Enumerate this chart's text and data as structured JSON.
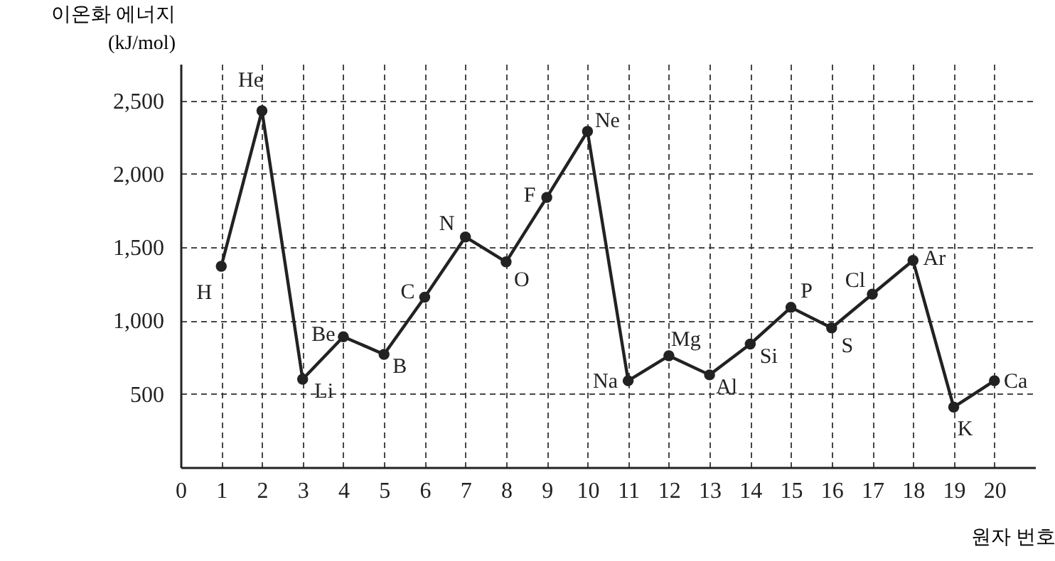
{
  "chart_data": {
    "type": "line",
    "xlabel": "원자 번호",
    "ylabel": "이온화 에너지\n(kJ/mol)",
    "x": [
      1,
      2,
      3,
      4,
      5,
      6,
      7,
      8,
      9,
      10,
      11,
      12,
      13,
      14,
      15,
      16,
      17,
      18,
      19,
      20
    ],
    "series": [
      {
        "color": "#222222",
        "values": [
          1370,
          2430,
          600,
          890,
          770,
          1160,
          1570,
          1400,
          1840,
          2290,
          590,
          760,
          630,
          840,
          1090,
          950,
          1180,
          1410,
          410,
          590
        ]
      }
    ],
    "xlim": [
      0,
      21
    ],
    "xticks": [
      0,
      1,
      2,
      3,
      4,
      5,
      6,
      7,
      8,
      9,
      10,
      11,
      12,
      13,
      14,
      15,
      16,
      17,
      18,
      19,
      20
    ],
    "ylim": [
      0,
      2750
    ],
    "yticks": [
      500,
      {
        "value": 1000,
        "label": "1,000"
      },
      {
        "value": 1500,
        "label": "1,500"
      },
      {
        "value": 2000,
        "label": "2,000"
      },
      {
        "value": 2500,
        "label": "2,500"
      }
    ],
    "grid": true,
    "marker": "circle",
    "line_style": "solid",
    "annotations": [
      {
        "text": "H",
        "x": 1,
        "y": 1370
      },
      {
        "text": "He",
        "x": 2,
        "y": 2430
      },
      {
        "text": "Li",
        "x": 3,
        "y": 600
      },
      {
        "text": "Be",
        "x": 4,
        "y": 890
      },
      {
        "text": "B",
        "x": 5,
        "y": 770
      },
      {
        "text": "C",
        "x": 6,
        "y": 1160
      },
      {
        "text": "N",
        "x": 7,
        "y": 1570
      },
      {
        "text": "O",
        "x": 8,
        "y": 1400
      },
      {
        "text": "F",
        "x": 9,
        "y": 1840
      },
      {
        "text": "Ne",
        "x": 10,
        "y": 2290
      },
      {
        "text": "Na",
        "x": 11,
        "y": 590
      },
      {
        "text": "Mg",
        "x": 12,
        "y": 760
      },
      {
        "text": "Al",
        "x": 13,
        "y": 630
      },
      {
        "text": "Si",
        "x": 14,
        "y": 840
      },
      {
        "text": "P",
        "x": 15,
        "y": 1090
      },
      {
        "text": "S",
        "x": 16,
        "y": 950
      },
      {
        "text": "Cl",
        "x": 17,
        "y": 1180
      },
      {
        "text": "Ar",
        "x": 18,
        "y": 1410
      },
      {
        "text": "K",
        "x": 19,
        "y": 410
      },
      {
        "text": "Ca",
        "x": 20,
        "y": 590
      }
    ]
  }
}
